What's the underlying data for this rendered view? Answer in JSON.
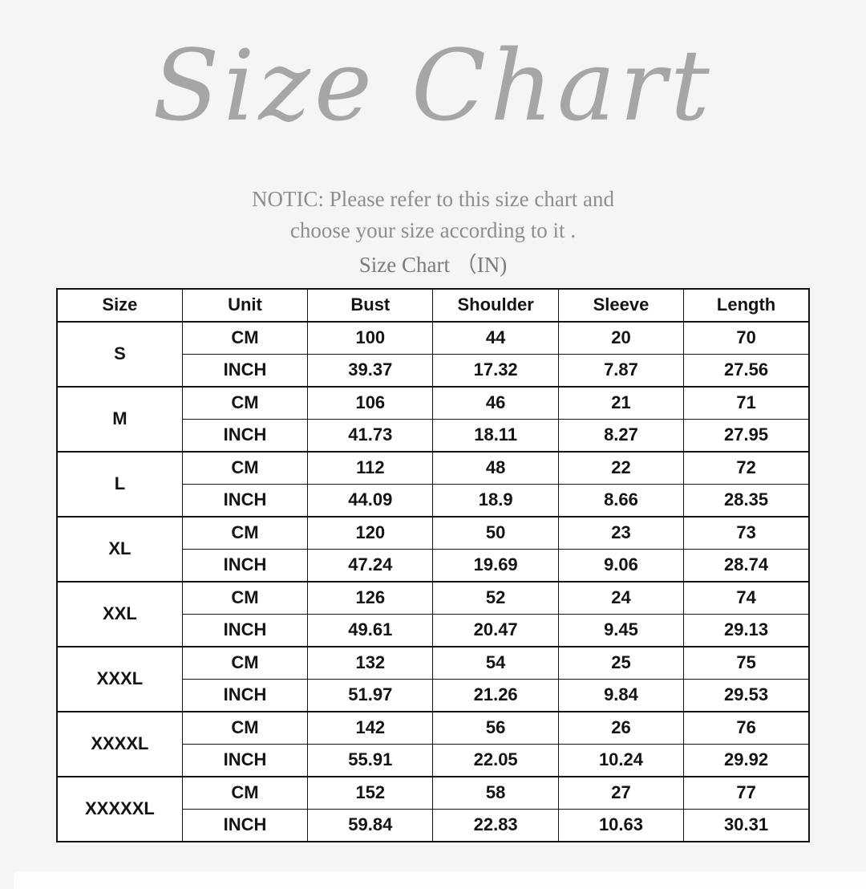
{
  "header": {
    "title": "Size Chart",
    "notice_line1": "NOTIC: Please refer to this size chart and",
    "notice_line2": "choose your size according to it .",
    "table_caption": "Size Chart （IN)"
  },
  "colors": {
    "background": "#f6f5f3",
    "title_gray": "#a6a6a6",
    "notice_gray": "#8f8d8d",
    "table_border": "#141414",
    "table_text": "#141414",
    "cell_background": "#ffffff"
  },
  "chart_data": {
    "type": "table",
    "title": "Size Chart",
    "caption": "Size Chart （IN)",
    "columns": [
      "Size",
      "Unit",
      "Bust",
      "Shoulder",
      "Sleeve",
      "Length"
    ],
    "unit_labels": [
      "CM",
      "INCH"
    ],
    "rows": [
      {
        "size": "S",
        "cm": [
          "100",
          "44",
          "20",
          "70"
        ],
        "inch": [
          "39.37",
          "17.32",
          "7.87",
          "27.56"
        ]
      },
      {
        "size": "M",
        "cm": [
          "106",
          "46",
          "21",
          "71"
        ],
        "inch": [
          "41.73",
          "18.11",
          "8.27",
          "27.95"
        ]
      },
      {
        "size": "L",
        "cm": [
          "112",
          "48",
          "22",
          "72"
        ],
        "inch": [
          "44.09",
          "18.9",
          "8.66",
          "28.35"
        ]
      },
      {
        "size": "XL",
        "cm": [
          "120",
          "50",
          "23",
          "73"
        ],
        "inch": [
          "47.24",
          "19.69",
          "9.06",
          "28.74"
        ]
      },
      {
        "size": "XXL",
        "cm": [
          "126",
          "52",
          "24",
          "74"
        ],
        "inch": [
          "49.61",
          "20.47",
          "9.45",
          "29.13"
        ]
      },
      {
        "size": "XXXL",
        "cm": [
          "132",
          "54",
          "25",
          "75"
        ],
        "inch": [
          "51.97",
          "21.26",
          "9.84",
          "29.53"
        ]
      },
      {
        "size": "XXXXL",
        "cm": [
          "142",
          "56",
          "26",
          "76"
        ],
        "inch": [
          "55.91",
          "22.05",
          "10.24",
          "29.92"
        ]
      },
      {
        "size": "XXXXXL",
        "cm": [
          "152",
          "58",
          "27",
          "77"
        ],
        "inch": [
          "59.84",
          "22.83",
          "10.63",
          "30.31"
        ]
      }
    ]
  }
}
